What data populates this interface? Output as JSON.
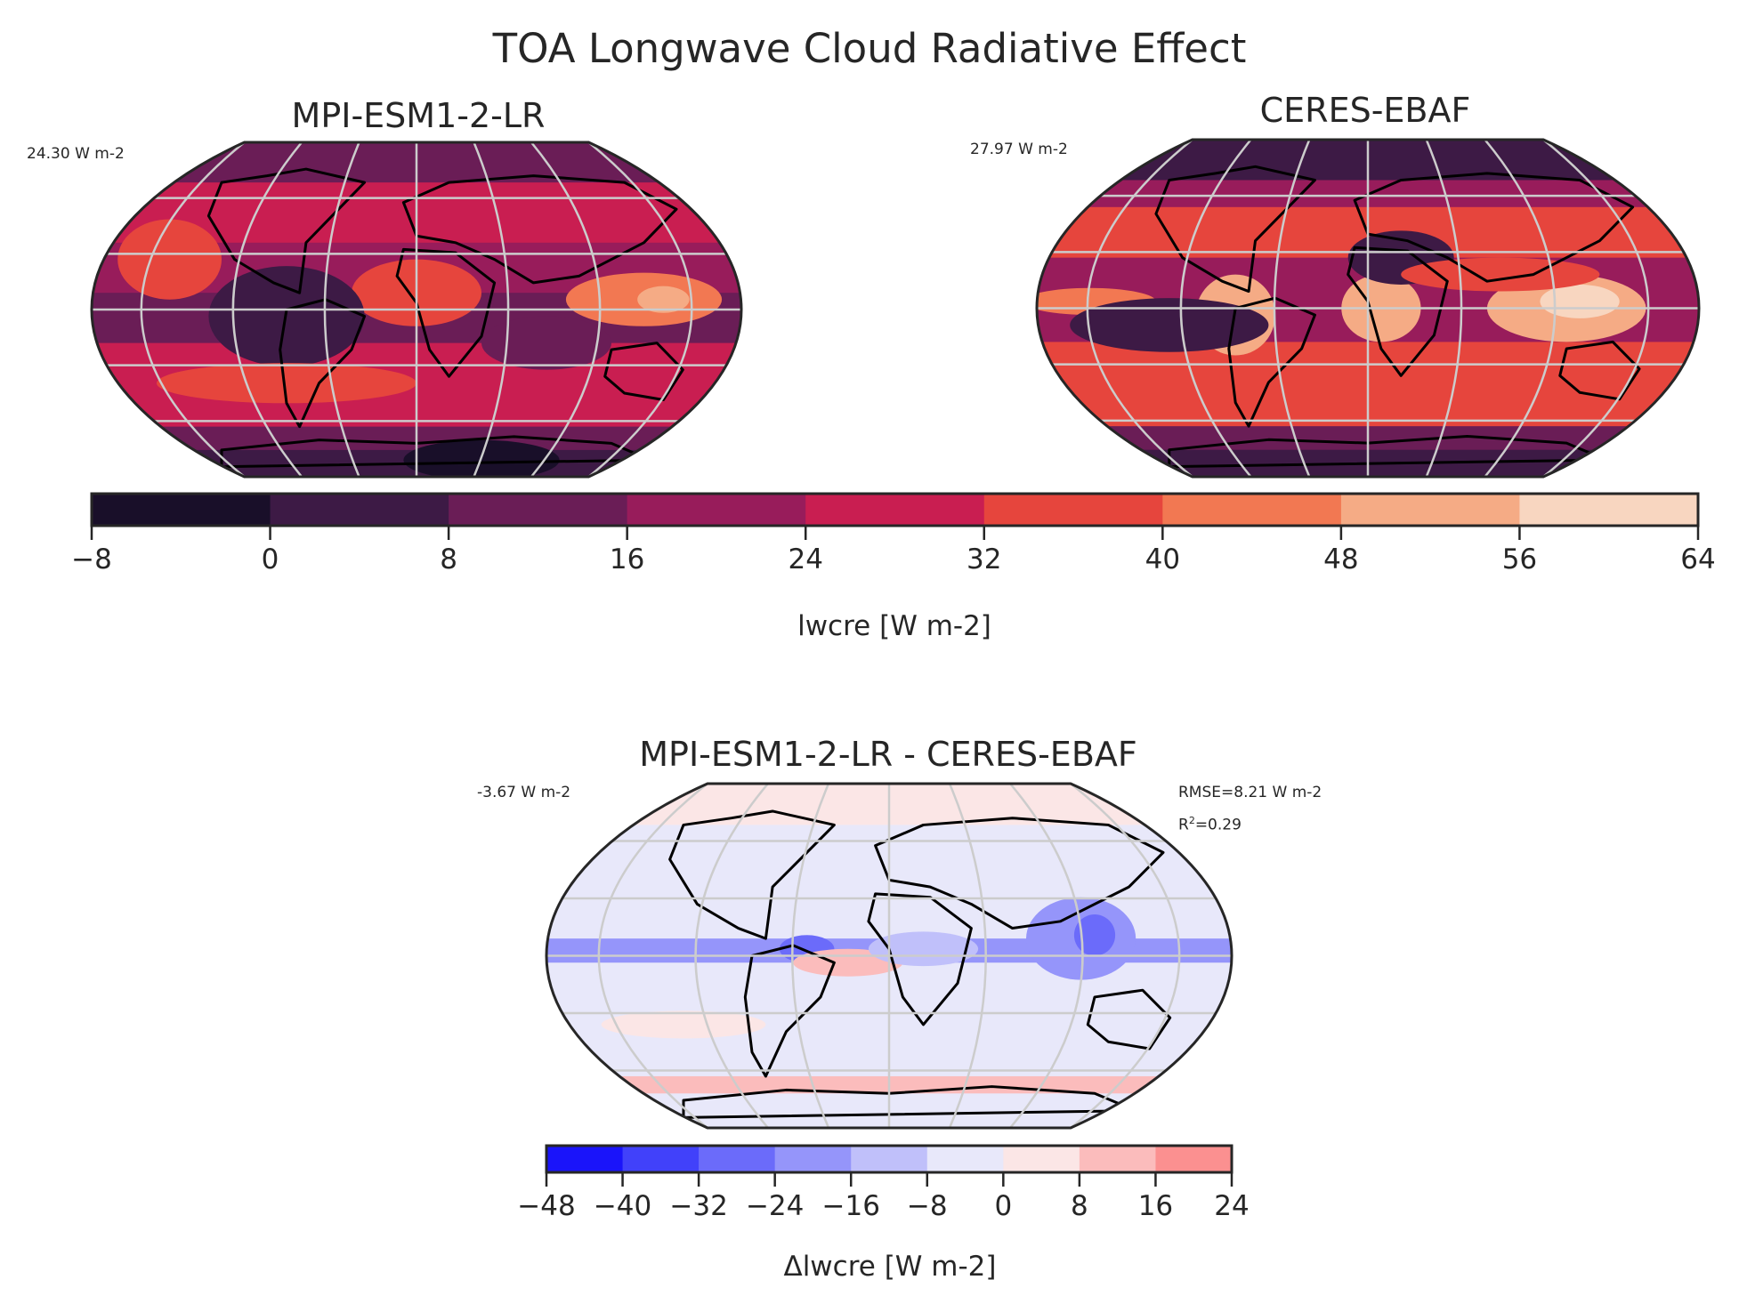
{
  "figure": {
    "title": "TOA Longwave Cloud Radiative Effect"
  },
  "panels": {
    "model": {
      "title": "MPI-ESM1-2-LR",
      "mean_label": "24.30 W m-2"
    },
    "reference": {
      "title": "CERES-EBAF",
      "mean_label": "27.97 W m-2"
    },
    "bias": {
      "title": "MPI-ESM1-2-LR - CERES-EBAF",
      "mean_label": "-3.67 W m-2",
      "rmse_label": "RMSE=8.21 W m-2",
      "r2_prefix": "R",
      "r2_sup": "2",
      "r2_value": "=0.29"
    }
  },
  "colorbars": {
    "main": {
      "label": "lwcre [W m-2]",
      "ticks": [
        "−8",
        "0",
        "8",
        "16",
        "24",
        "32",
        "40",
        "48",
        "56",
        "64"
      ],
      "levels": [
        -8,
        0,
        8,
        16,
        24,
        32,
        40,
        48,
        56,
        64
      ],
      "colors": [
        "#190f29",
        "#3d1a45",
        "#6a1d56",
        "#981c5b",
        "#c91e51",
        "#e6453d",
        "#f27852",
        "#f5ab85",
        "#f8d6c0"
      ]
    },
    "bias": {
      "label": "Δlwcre [W m-2]",
      "ticks": [
        "−48",
        "−40",
        "−32",
        "−24",
        "−16",
        "−8",
        "0",
        "8",
        "16",
        "24"
      ],
      "levels": [
        -48,
        -40,
        -32,
        -24,
        -16,
        -8,
        0,
        8,
        16,
        24
      ],
      "colors": [
        "#1a14fa",
        "#4141fa",
        "#6b6bfa",
        "#9595fa",
        "#c0c0fa",
        "#e8e8fa",
        "#fbe6e6",
        "#fbbcbc",
        "#fb9090"
      ]
    }
  },
  "map": {
    "projection": "Robinson",
    "coastline_color": "#000000",
    "grid_color": "#cccccc",
    "frame_color": "#262626"
  }
}
